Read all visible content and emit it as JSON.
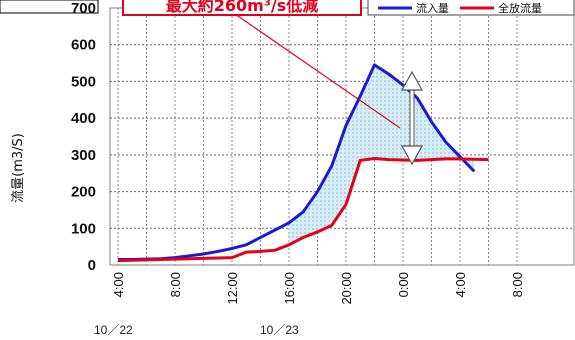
{
  "chart_data": {
    "type": "line",
    "ylabel": "流量(m3/S)",
    "ylim": [
      0,
      700
    ],
    "yticks": [
      0,
      100,
      200,
      300,
      400,
      500,
      600,
      700
    ],
    "grid": true,
    "x_hours": [
      4,
      5,
      6,
      7,
      8,
      9,
      10,
      11,
      12,
      13,
      14,
      15,
      16,
      17,
      18,
      19,
      20,
      21,
      22,
      23,
      24,
      25,
      26,
      27,
      28,
      29,
      30
    ],
    "x_tick_labels": [
      "4:00",
      "8:00",
      "12:00",
      "16:00",
      "20:00",
      "0:00",
      "4:00",
      "8:00"
    ],
    "date_labels": [
      "10／22",
      "10／23"
    ],
    "legend_position": "top-right",
    "series": [
      {
        "name": "流入量",
        "color": "#1a1ad6",
        "values": [
          15,
          15,
          16,
          17,
          20,
          25,
          30,
          37,
          45,
          55,
          75,
          95,
          115,
          145,
          200,
          270,
          380,
          460,
          545,
          520,
          490,
          455,
          390,
          335,
          295,
          255,
          null
        ]
      },
      {
        "name": "全放流量",
        "color": "#e3001b",
        "values": [
          12,
          13,
          14,
          15,
          16,
          17,
          18,
          19,
          20,
          35,
          37,
          40,
          55,
          75,
          90,
          108,
          165,
          285,
          290,
          287,
          286,
          285,
          287,
          289,
          289,
          288,
          287
        ]
      }
    ],
    "annotations": [
      {
        "text": "最大約260m³/s低減",
        "color": "#e3001b"
      }
    ],
    "fill_between_color": "#cde9f5"
  },
  "top_left_label": ""
}
